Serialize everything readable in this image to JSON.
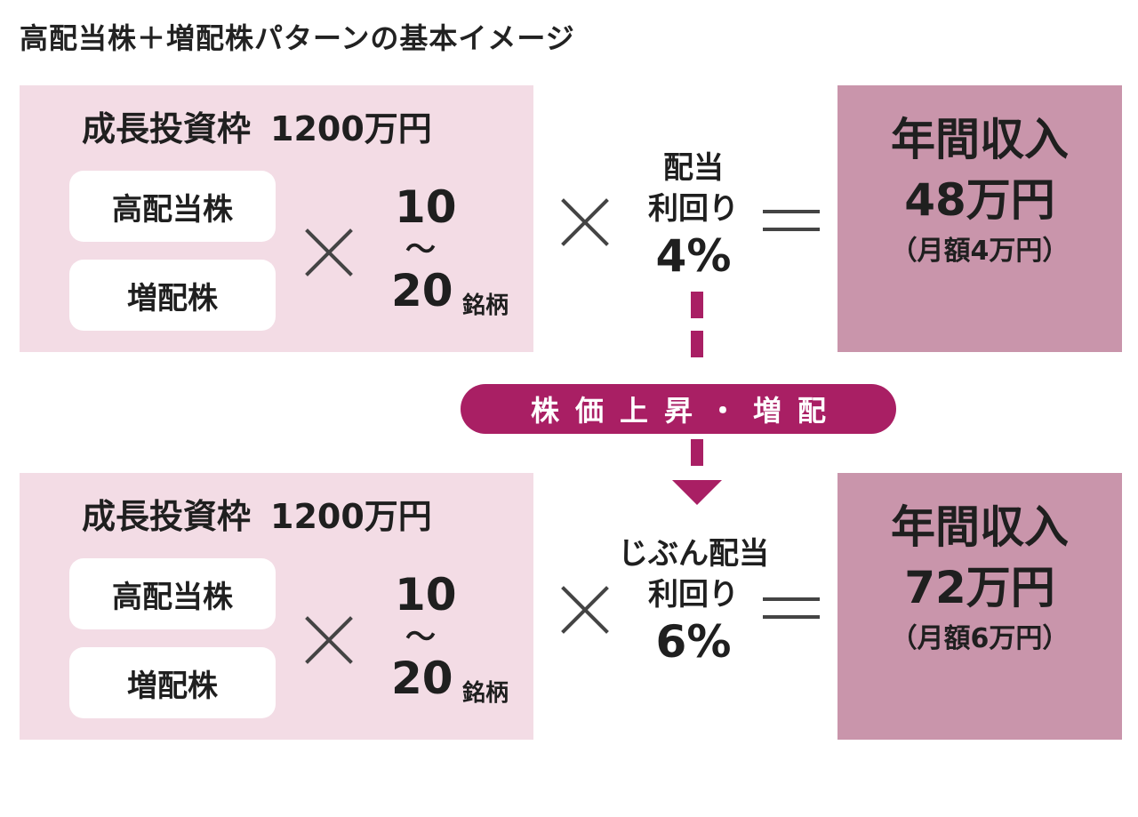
{
  "title": "高配当株＋増配株パターンの基本イメージ",
  "before": {
    "frame_label": "成長投資枠",
    "frame_amount": "1200万円",
    "stock_type_1": "高配当株",
    "stock_type_2": "増配株",
    "count_min": "10",
    "count_range_sep": "～",
    "count_max": "20",
    "count_unit": "銘柄",
    "yield_line1": "配当",
    "yield_line2": "利回り",
    "yield_pct": "4%",
    "result_line1": "年間収入",
    "result_annual": "48万円",
    "result_monthly": "（月額4万円）"
  },
  "transition": {
    "label": "株価上昇・増配"
  },
  "after": {
    "frame_label": "成長投資枠",
    "frame_amount": "1200万円",
    "stock_type_1": "高配当株",
    "stock_type_2": "増配株",
    "count_min": "10",
    "count_range_sep": "～",
    "count_max": "20",
    "count_unit": "銘柄",
    "yield_line1": "じぶん配当",
    "yield_line2": "利回り",
    "yield_pct": "6%",
    "result_line1": "年間収入",
    "result_annual": "72万円",
    "result_monthly": "（月額6万円）"
  },
  "colors": {
    "left_box_bg": "#f3dce5",
    "right_box_bg": "#c995ab",
    "accent": "#a91f64"
  }
}
